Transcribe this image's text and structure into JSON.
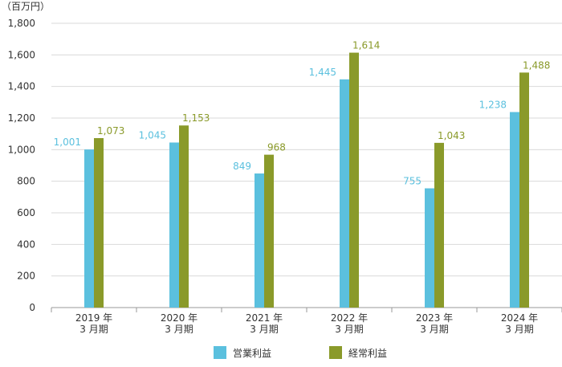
{
  "chart_data": {
    "type": "bar",
    "unit_label": "（百万円）",
    "categories": [
      [
        "2019 年",
        "3 月期"
      ],
      [
        "2020 年",
        "3 月期"
      ],
      [
        "2021 年",
        "3 月期"
      ],
      [
        "2022 年",
        "3 月期"
      ],
      [
        "2023 年",
        "3 月期"
      ],
      [
        "2024 年",
        "3 月期"
      ]
    ],
    "series": [
      {
        "name": "営業利益",
        "color": "#5bc0de",
        "values": [
          1001,
          1045,
          849,
          1445,
          755,
          1238
        ],
        "labels": [
          "1,001",
          "1,045",
          "849",
          "1,445",
          "755",
          "1,238"
        ]
      },
      {
        "name": "経常利益",
        "color": "#8a9a2a",
        "values": [
          1073,
          1153,
          968,
          1614,
          1043,
          1488
        ],
        "labels": [
          "1,073",
          "1,153",
          "968",
          "1,614",
          "1,043",
          "1,488"
        ]
      }
    ],
    "ylim": [
      0,
      1800
    ],
    "y_ticks": [
      0,
      200,
      400,
      600,
      800,
      1000,
      1200,
      1400,
      1600,
      1800
    ],
    "y_tick_labels": [
      "0",
      "200",
      "400",
      "600",
      "800",
      "1,000",
      "1,200",
      "1,400",
      "1,600",
      "1,800"
    ],
    "grid": "horizontal",
    "legend_position": "bottom",
    "title": "",
    "xlabel": "",
    "ylabel": ""
  }
}
